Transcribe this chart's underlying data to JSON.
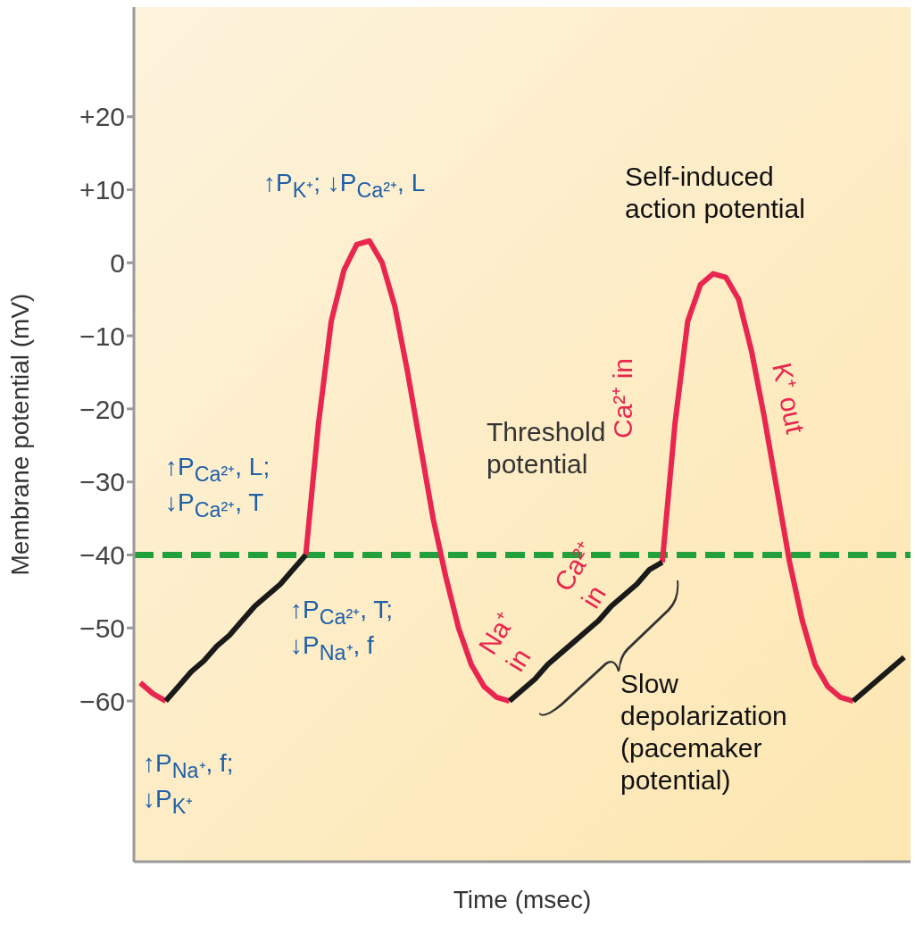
{
  "chart_data": {
    "type": "line",
    "xlabel": "Time (msec)",
    "ylabel": "Membrane potential (mV)",
    "categories": [
      null,
      null,
      null,
      null,
      null,
      null,
      null,
      null,
      null,
      null,
      null,
      null,
      null,
      null,
      null,
      null,
      null,
      null,
      null,
      null,
      null,
      null,
      null,
      null,
      null,
      null,
      null,
      null,
      null,
      null,
      null,
      null,
      null,
      null,
      null,
      null,
      null,
      null,
      null,
      null,
      null,
      null,
      null,
      null,
      null,
      null,
      null,
      null,
      null,
      null,
      null,
      null,
      null,
      null,
      null,
      null,
      null,
      null,
      null,
      null,
      null
    ],
    "series": [
      {
        "color": "#e8264f",
        "values": [
          -57.5,
          -59,
          -60,
          null,
          null,
          null,
          null,
          null,
          null,
          null,
          null,
          null,
          null,
          -40,
          -22,
          -8,
          -1,
          2.5,
          3,
          0,
          -6,
          -15,
          -25,
          -35,
          -43,
          -50,
          -55,
          -58,
          -59.5,
          -60,
          null,
          null,
          null,
          null,
          null,
          null,
          null,
          null,
          null,
          null,
          null,
          -41,
          -22,
          -8,
          -3,
          -1.5,
          -2,
          -5,
          -12,
          -21,
          -31,
          -41,
          -49,
          -55,
          -58,
          -59.5,
          -60,
          null,
          null,
          null,
          null
        ]
      },
      {
        "color": "#1a1a1a",
        "values": [
          null,
          null,
          -60,
          -58,
          -56,
          -54.5,
          -52.5,
          -51,
          -49,
          -47,
          -45.5,
          -44,
          -42,
          -40,
          null,
          null,
          null,
          null,
          null,
          null,
          null,
          null,
          null,
          null,
          null,
          null,
          null,
          null,
          null,
          -60,
          -58.5,
          -57,
          -55,
          -53.5,
          -52,
          -50.5,
          -49,
          -47,
          -45.5,
          -44,
          -42,
          -41,
          null,
          null,
          null,
          null,
          null,
          null,
          null,
          null,
          null,
          null,
          null,
          null,
          null,
          null,
          -60,
          -58.5,
          -57,
          -55.5,
          -54
        ]
      }
    ],
    "ylim": [
      -82,
      35
    ],
    "yticks": [
      {
        "value": 20,
        "label": "+20"
      },
      {
        "value": 10,
        "label": "+10"
      },
      0,
      {
        "value": -10,
        "label": "−10"
      },
      {
        "value": -20,
        "label": "−20"
      },
      {
        "value": -30,
        "label": "−30"
      },
      {
        "value": -40,
        "label": "−40"
      },
      {
        "value": -50,
        "label": "−50"
      },
      {
        "value": -60,
        "label": "−60"
      }
    ],
    "tick_labels": "y",
    "marker": "none",
    "line_style": "solid",
    "ref_lines": [
      {
        "axis": "y",
        "value": -40,
        "label": "Threshold\npotential",
        "color": "#22a03c",
        "line_style": "dashed"
      }
    ],
    "annotations": [
      "↑P$_{K⁺}$; ↓P$_{Ca²⁺}$, L",
      "↑P$_{Ca²⁺}$, L;\n↓P$_{Ca²⁺}$, T",
      "↑P$_{Ca²⁺}$, T;\n↓P$_{Na⁺}$, f",
      "↑P$_{Na⁺}$, f;\n↓P$_{K⁺}$",
      "Self-induced\naction potential",
      "Ca²⁺ in",
      "K⁺ out",
      "Na⁺\nin",
      "Ca²⁺\nin",
      "Slow\ndepolarization\n(pacemaker\npotential)"
    ]
  }
}
